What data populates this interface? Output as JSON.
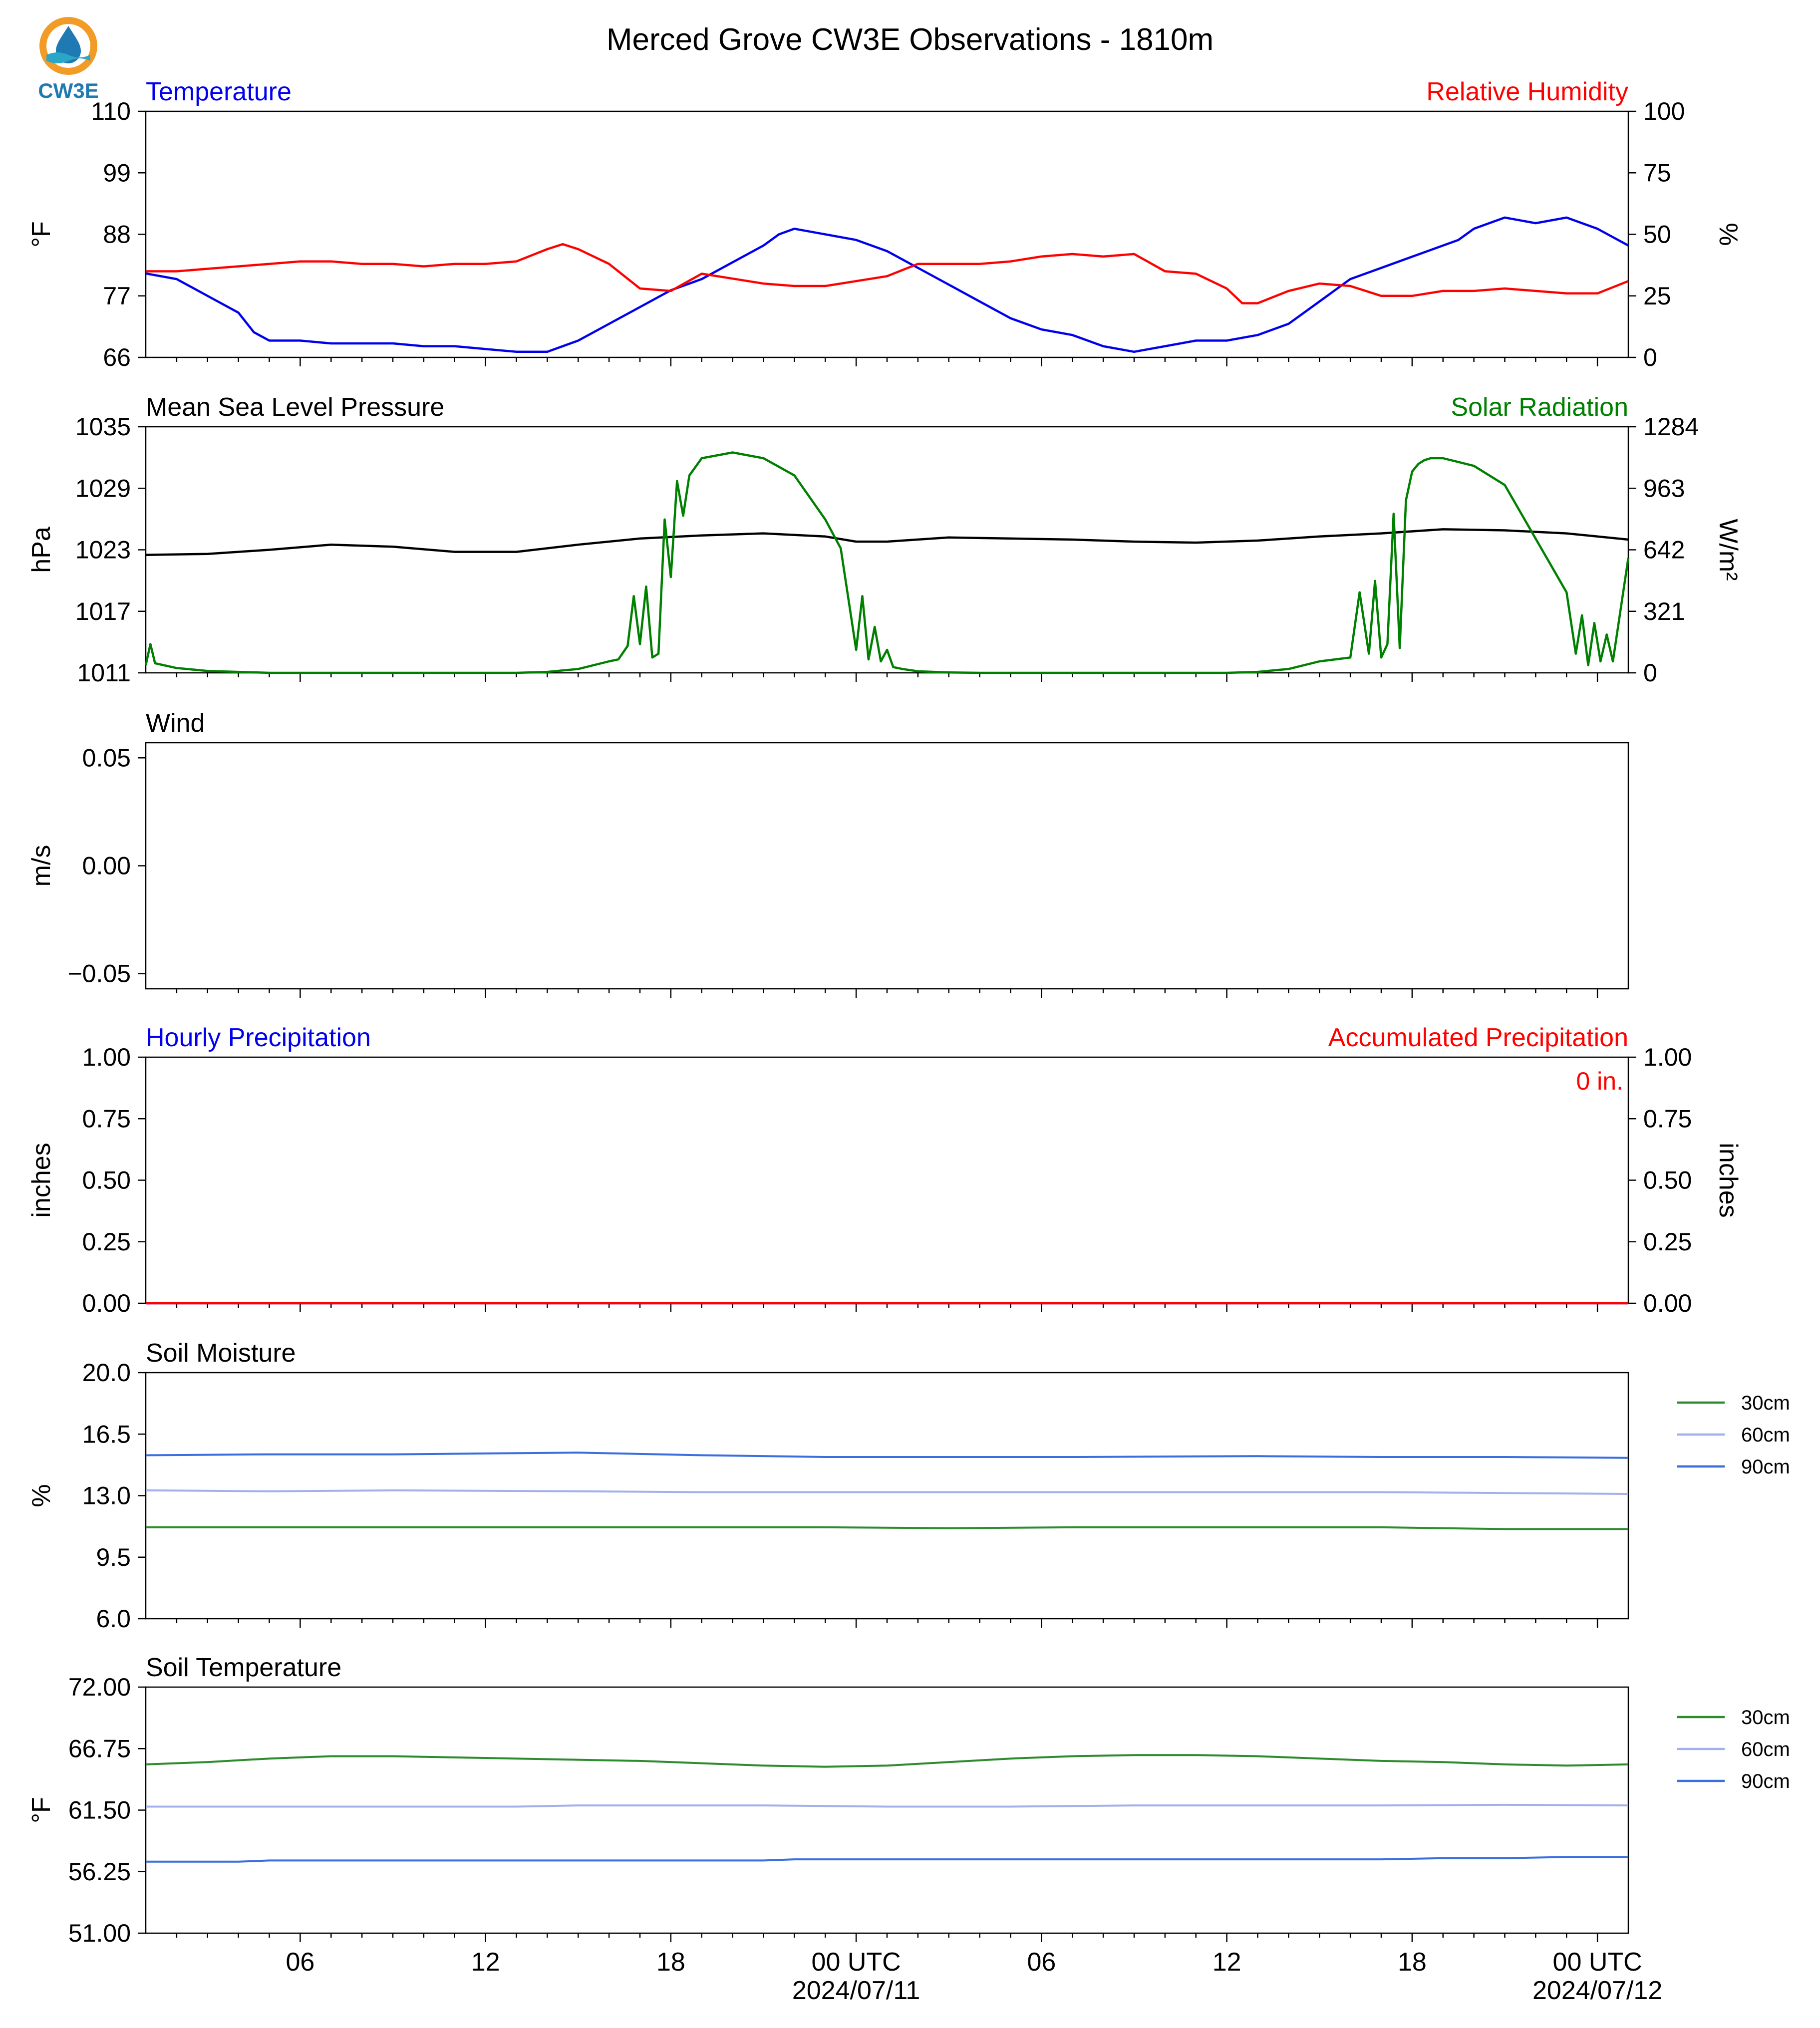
{
  "title": "Merced Grove CW3E Observations - 1810m",
  "logo_text": "CW3E",
  "colors": {
    "temperature": "#0000ee",
    "humidity": "#ff0000",
    "pressure": "#000000",
    "solar": "#008000",
    "precip_hourly": "#0000ee",
    "precip_accum": "#ff0000",
    "soil_30": "#2e8b2e",
    "soil_60": "#a4b0ec",
    "soil_90": "#3a6fe0"
  },
  "x_axis": {
    "hours_start": 0,
    "hours_end": 48,
    "tick_labels": [
      {
        "hour": 5,
        "label": "06",
        "date": ""
      },
      {
        "hour": 11,
        "label": "12",
        "date": ""
      },
      {
        "hour": 17,
        "label": "18",
        "date": ""
      },
      {
        "hour": 23,
        "label": "00 UTC",
        "date": "2024/07/11"
      },
      {
        "hour": 29,
        "label": "06",
        "date": ""
      },
      {
        "hour": 35,
        "label": "12",
        "date": ""
      },
      {
        "hour": 41,
        "label": "18",
        "date": ""
      },
      {
        "hour": 47,
        "label": "00 UTC",
        "date": "2024/07/12"
      }
    ]
  },
  "chart_data": [
    {
      "type": "line",
      "left_title": "Temperature",
      "right_title": "Relative Humidity",
      "ylabel": "°F",
      "ylabel_right": "%",
      "yticks": [
        "66",
        "77",
        "88",
        "99",
        "110"
      ],
      "yticks_right": [
        "0",
        "25",
        "50",
        "75",
        "100"
      ],
      "ylim": [
        66,
        110
      ],
      "ylim_right": [
        0,
        100
      ],
      "series": [
        {
          "name": "Temperature",
          "axis": "left",
          "color_key": "temperature",
          "x": [
            0,
            1,
            2,
            3,
            3.5,
            4,
            5,
            6,
            7,
            8,
            9,
            10,
            11,
            12,
            13,
            14,
            15,
            16,
            17,
            18,
            19,
            20,
            20.5,
            21,
            22,
            23,
            24,
            25,
            26,
            27,
            28,
            29,
            30,
            31,
            32,
            33,
            34,
            35,
            36,
            37,
            38,
            39,
            40,
            41,
            42,
            42.5,
            43,
            44,
            45,
            46,
            47,
            48
          ],
          "y": [
            81,
            80,
            77,
            74,
            70.5,
            69,
            69,
            68.5,
            68.5,
            68.5,
            68,
            68,
            67.5,
            67,
            67,
            69,
            72,
            75,
            78,
            80,
            83,
            86,
            88,
            89,
            88,
            87,
            85,
            82,
            79,
            76,
            73,
            71,
            70,
            68,
            67,
            68,
            69,
            69,
            70,
            72,
            76,
            80,
            82,
            84,
            86,
            87,
            89,
            91,
            90,
            91,
            89,
            86
          ]
        },
        {
          "name": "Relative Humidity",
          "axis": "right",
          "color_key": "humidity",
          "x": [
            0,
            1,
            2,
            3,
            4,
            5,
            6,
            7,
            8,
            9,
            10,
            11,
            12,
            13,
            13.5,
            14,
            15,
            16,
            17,
            18,
            19,
            20,
            21,
            22,
            23,
            24,
            25,
            26,
            27,
            28,
            29,
            30,
            31,
            32,
            33,
            34,
            35,
            35.5,
            36,
            37,
            38,
            39,
            40,
            41,
            42,
            43,
            44,
            45,
            46,
            47,
            48
          ],
          "y": [
            35,
            35,
            36,
            37,
            38,
            39,
            39,
            38,
            38,
            37,
            38,
            38,
            39,
            44,
            46,
            44,
            38,
            28,
            27,
            34,
            32,
            30,
            29,
            29,
            31,
            33,
            38,
            38,
            38,
            39,
            41,
            42,
            41,
            42,
            35,
            34,
            28,
            22,
            22,
            27,
            30,
            29,
            25,
            25,
            27,
            27,
            28,
            27,
            26,
            26,
            31
          ]
        }
      ]
    },
    {
      "type": "line",
      "left_title": "Mean Sea Level Pressure",
      "right_title": "Solar Radiation",
      "ylabel": "hPa",
      "ylabel_right": "W/m²",
      "yticks": [
        "1011",
        "1017",
        "1023",
        "1029",
        "1035"
      ],
      "yticks_right": [
        "0",
        "321",
        "642",
        "963",
        "1284"
      ],
      "ylim": [
        1011,
        1035
      ],
      "ylim_right": [
        0,
        1284
      ],
      "series": [
        {
          "name": "Mean Sea Level Pressure",
          "axis": "left",
          "color_key": "pressure",
          "x": [
            0,
            2,
            4,
            6,
            8,
            10,
            12,
            14,
            16,
            18,
            20,
            22,
            23,
            24,
            26,
            28,
            30,
            32,
            34,
            36,
            38,
            40,
            42,
            44,
            46,
            48
          ],
          "y": [
            1022.5,
            1022.6,
            1023,
            1023.5,
            1023.3,
            1022.8,
            1022.8,
            1023.5,
            1024.1,
            1024.4,
            1024.6,
            1024.3,
            1023.8,
            1023.8,
            1024.2,
            1024.1,
            1024,
            1023.8,
            1023.7,
            1023.9,
            1024.3,
            1024.6,
            1025,
            1024.9,
            1024.6,
            1024
          ]
        },
        {
          "name": "Solar Radiation",
          "axis": "right",
          "color_key": "solar",
          "x": [
            0,
            0.15,
            0.3,
            1,
            2,
            3,
            4,
            5,
            6,
            7,
            8,
            9,
            10,
            11,
            12,
            13,
            14,
            15,
            15.3,
            15.6,
            15.8,
            16,
            16.2,
            16.4,
            16.6,
            16.8,
            17,
            17.2,
            17.4,
            17.6,
            18,
            19,
            20,
            21,
            22,
            22.5,
            23,
            23.2,
            23.4,
            23.6,
            23.8,
            24,
            24.2,
            24.5,
            25,
            26,
            27,
            28,
            29,
            30,
            31,
            32,
            33,
            34,
            35,
            36,
            37,
            38,
            39,
            39.3,
            39.6,
            39.8,
            40,
            40.2,
            40.4,
            40.6,
            40.8,
            41,
            41.2,
            41.4,
            41.6,
            42,
            43,
            44,
            45,
            46,
            46.3,
            46.5,
            46.7,
            46.9,
            47.1,
            47.3,
            47.5,
            48
          ],
          "y": [
            40,
            150,
            50,
            25,
            10,
            5,
            0,
            0,
            0,
            0,
            0,
            0,
            0,
            0,
            0,
            5,
            20,
            60,
            70,
            140,
            400,
            150,
            450,
            80,
            100,
            800,
            500,
            1000,
            820,
            1030,
            1120,
            1150,
            1120,
            1030,
            800,
            650,
            120,
            400,
            70,
            240,
            60,
            120,
            30,
            20,
            8,
            2,
            0,
            0,
            0,
            0,
            0,
            0,
            0,
            0,
            0,
            5,
            20,
            60,
            80,
            420,
            100,
            480,
            80,
            150,
            830,
            130,
            900,
            1050,
            1090,
            1110,
            1120,
            1120,
            1080,
            980,
            700,
            420,
            100,
            300,
            40,
            260,
            60,
            200,
            60,
            600
          ]
        }
      ]
    },
    {
      "type": "line",
      "left_title": "Wind",
      "right_title": "",
      "ylabel": "m/s",
      "ylabel_right": "",
      "yticks": [
        "−0.05",
        "0.00",
        "0.05"
      ],
      "yticks_right": [],
      "ylim": [
        -0.057,
        0.057
      ],
      "ylim_right": [
        0,
        1
      ],
      "series": []
    },
    {
      "type": "line",
      "left_title": "Hourly Precipitation",
      "right_title": "Accumulated Precipitation",
      "annotation": "0 in.",
      "ylabel": "inches",
      "ylabel_right": "inches",
      "yticks": [
        "0.00",
        "0.25",
        "0.50",
        "0.75",
        "1.00"
      ],
      "yticks_right": [
        "0.00",
        "0.25",
        "0.50",
        "0.75",
        "1.00"
      ],
      "ylim": [
        0,
        1
      ],
      "ylim_right": [
        0,
        1
      ],
      "series": [
        {
          "name": "Hourly Precipitation",
          "axis": "left",
          "color_key": "precip_hourly",
          "x": [
            0,
            48
          ],
          "y": [
            0,
            0
          ]
        },
        {
          "name": "Accumulated Precipitation",
          "axis": "right",
          "color_key": "precip_accum",
          "x": [
            0,
            48
          ],
          "y": [
            0,
            0
          ]
        }
      ]
    },
    {
      "type": "line",
      "left_title": "Soil Moisture",
      "right_title": "",
      "ylabel": "%",
      "ylabel_right": "",
      "yticks": [
        "6.0",
        "9.5",
        "13.0",
        "16.5",
        "20.0"
      ],
      "yticks_right": [],
      "ylim": [
        6,
        20
      ],
      "ylim_right": [
        0,
        1
      ],
      "legend": [
        "30cm",
        "60cm",
        "90cm"
      ],
      "series": [
        {
          "name": "30cm",
          "axis": "left",
          "color_key": "soil_30",
          "x": [
            0,
            12,
            22,
            26,
            30,
            40,
            44,
            48
          ],
          "y": [
            11.2,
            11.2,
            11.2,
            11.15,
            11.2,
            11.2,
            11.1,
            11.1
          ]
        },
        {
          "name": "60cm",
          "axis": "left",
          "color_key": "soil_60",
          "x": [
            0,
            4,
            8,
            14,
            18,
            24,
            30,
            36,
            40,
            44,
            48
          ],
          "y": [
            13.3,
            13.25,
            13.3,
            13.25,
            13.2,
            13.2,
            13.2,
            13.2,
            13.2,
            13.15,
            13.1
          ]
        },
        {
          "name": "90cm",
          "axis": "left",
          "color_key": "soil_90",
          "x": [
            0,
            4,
            8,
            14,
            18,
            22,
            30,
            36,
            40,
            44,
            48
          ],
          "y": [
            15.3,
            15.35,
            15.35,
            15.45,
            15.3,
            15.2,
            15.2,
            15.25,
            15.2,
            15.2,
            15.15
          ]
        }
      ]
    },
    {
      "type": "line",
      "left_title": "Soil Temperature",
      "right_title": "",
      "ylabel": "°F",
      "ylabel_right": "",
      "yticks": [
        "51.00",
        "56.25",
        "61.50",
        "66.75",
        "72.00"
      ],
      "yticks_right": [],
      "ylim": [
        51,
        72
      ],
      "ylim_right": [
        0,
        1
      ],
      "legend": [
        "30cm",
        "60cm",
        "90cm"
      ],
      "series": [
        {
          "name": "30cm",
          "axis": "left",
          "color_key": "soil_30",
          "x": [
            0,
            2,
            4,
            6,
            8,
            10,
            12,
            14,
            16,
            18,
            20,
            22,
            24,
            26,
            28,
            30,
            32,
            34,
            36,
            38,
            40,
            42,
            44,
            46,
            48
          ],
          "y": [
            65.4,
            65.6,
            65.9,
            66.1,
            66.1,
            66.0,
            65.9,
            65.8,
            65.7,
            65.5,
            65.3,
            65.2,
            65.3,
            65.6,
            65.9,
            66.1,
            66.2,
            66.2,
            66.1,
            65.9,
            65.7,
            65.6,
            65.4,
            65.3,
            65.4
          ]
        },
        {
          "name": "60cm",
          "axis": "left",
          "color_key": "soil_60",
          "x": [
            0,
            6,
            12,
            14,
            20,
            24,
            28,
            32,
            36,
            40,
            44,
            48
          ],
          "y": [
            61.8,
            61.8,
            61.8,
            61.9,
            61.9,
            61.8,
            61.8,
            61.9,
            61.9,
            61.9,
            61.95,
            61.9
          ]
        },
        {
          "name": "90cm",
          "axis": "left",
          "color_key": "soil_90",
          "x": [
            0,
            3,
            4,
            8,
            12,
            16,
            20,
            21,
            24,
            28,
            32,
            36,
            40,
            42,
            44,
            46,
            48
          ],
          "y": [
            57.1,
            57.1,
            57.2,
            57.2,
            57.2,
            57.2,
            57.2,
            57.3,
            57.3,
            57.3,
            57.3,
            57.3,
            57.3,
            57.4,
            57.4,
            57.5,
            57.5
          ]
        }
      ]
    }
  ]
}
